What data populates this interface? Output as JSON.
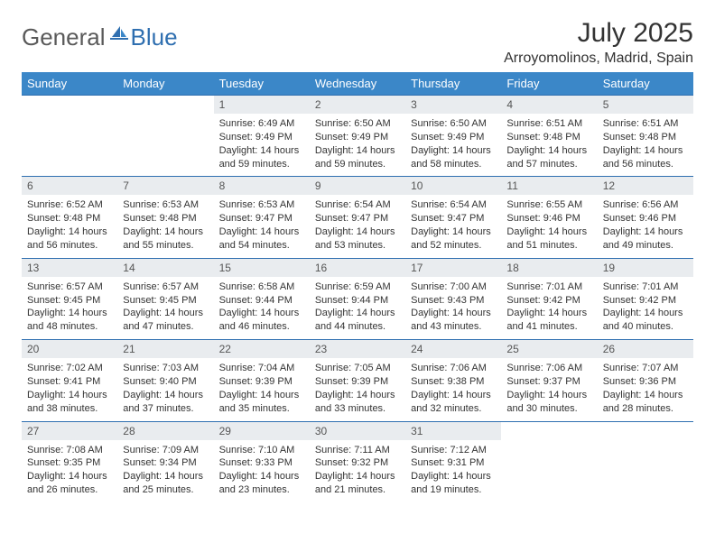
{
  "brand": {
    "text1": "General",
    "text2": "Blue",
    "icon_color": "#2f6fb0"
  },
  "title": "July 2025",
  "location": "Arroyomolinos, Madrid, Spain",
  "theme": {
    "header_bg": "#3b87c8",
    "header_text": "#ffffff",
    "daynum_bg": "#e9ecef",
    "rule_color": "#2f6fb0",
    "body_text": "#333333"
  },
  "weekdays": [
    "Sunday",
    "Monday",
    "Tuesday",
    "Wednesday",
    "Thursday",
    "Friday",
    "Saturday"
  ],
  "weeks": [
    [
      null,
      null,
      {
        "n": "1",
        "sr": "6:49 AM",
        "ss": "9:49 PM",
        "dl": "14 hours and 59 minutes."
      },
      {
        "n": "2",
        "sr": "6:50 AM",
        "ss": "9:49 PM",
        "dl": "14 hours and 59 minutes."
      },
      {
        "n": "3",
        "sr": "6:50 AM",
        "ss": "9:49 PM",
        "dl": "14 hours and 58 minutes."
      },
      {
        "n": "4",
        "sr": "6:51 AM",
        "ss": "9:48 PM",
        "dl": "14 hours and 57 minutes."
      },
      {
        "n": "5",
        "sr": "6:51 AM",
        "ss": "9:48 PM",
        "dl": "14 hours and 56 minutes."
      }
    ],
    [
      {
        "n": "6",
        "sr": "6:52 AM",
        "ss": "9:48 PM",
        "dl": "14 hours and 56 minutes."
      },
      {
        "n": "7",
        "sr": "6:53 AM",
        "ss": "9:48 PM",
        "dl": "14 hours and 55 minutes."
      },
      {
        "n": "8",
        "sr": "6:53 AM",
        "ss": "9:47 PM",
        "dl": "14 hours and 54 minutes."
      },
      {
        "n": "9",
        "sr": "6:54 AM",
        "ss": "9:47 PM",
        "dl": "14 hours and 53 minutes."
      },
      {
        "n": "10",
        "sr": "6:54 AM",
        "ss": "9:47 PM",
        "dl": "14 hours and 52 minutes."
      },
      {
        "n": "11",
        "sr": "6:55 AM",
        "ss": "9:46 PM",
        "dl": "14 hours and 51 minutes."
      },
      {
        "n": "12",
        "sr": "6:56 AM",
        "ss": "9:46 PM",
        "dl": "14 hours and 49 minutes."
      }
    ],
    [
      {
        "n": "13",
        "sr": "6:57 AM",
        "ss": "9:45 PM",
        "dl": "14 hours and 48 minutes."
      },
      {
        "n": "14",
        "sr": "6:57 AM",
        "ss": "9:45 PM",
        "dl": "14 hours and 47 minutes."
      },
      {
        "n": "15",
        "sr": "6:58 AM",
        "ss": "9:44 PM",
        "dl": "14 hours and 46 minutes."
      },
      {
        "n": "16",
        "sr": "6:59 AM",
        "ss": "9:44 PM",
        "dl": "14 hours and 44 minutes."
      },
      {
        "n": "17",
        "sr": "7:00 AM",
        "ss": "9:43 PM",
        "dl": "14 hours and 43 minutes."
      },
      {
        "n": "18",
        "sr": "7:01 AM",
        "ss": "9:42 PM",
        "dl": "14 hours and 41 minutes."
      },
      {
        "n": "19",
        "sr": "7:01 AM",
        "ss": "9:42 PM",
        "dl": "14 hours and 40 minutes."
      }
    ],
    [
      {
        "n": "20",
        "sr": "7:02 AM",
        "ss": "9:41 PM",
        "dl": "14 hours and 38 minutes."
      },
      {
        "n": "21",
        "sr": "7:03 AM",
        "ss": "9:40 PM",
        "dl": "14 hours and 37 minutes."
      },
      {
        "n": "22",
        "sr": "7:04 AM",
        "ss": "9:39 PM",
        "dl": "14 hours and 35 minutes."
      },
      {
        "n": "23",
        "sr": "7:05 AM",
        "ss": "9:39 PM",
        "dl": "14 hours and 33 minutes."
      },
      {
        "n": "24",
        "sr": "7:06 AM",
        "ss": "9:38 PM",
        "dl": "14 hours and 32 minutes."
      },
      {
        "n": "25",
        "sr": "7:06 AM",
        "ss": "9:37 PM",
        "dl": "14 hours and 30 minutes."
      },
      {
        "n": "26",
        "sr": "7:07 AM",
        "ss": "9:36 PM",
        "dl": "14 hours and 28 minutes."
      }
    ],
    [
      {
        "n": "27",
        "sr": "7:08 AM",
        "ss": "9:35 PM",
        "dl": "14 hours and 26 minutes."
      },
      {
        "n": "28",
        "sr": "7:09 AM",
        "ss": "9:34 PM",
        "dl": "14 hours and 25 minutes."
      },
      {
        "n": "29",
        "sr": "7:10 AM",
        "ss": "9:33 PM",
        "dl": "14 hours and 23 minutes."
      },
      {
        "n": "30",
        "sr": "7:11 AM",
        "ss": "9:32 PM",
        "dl": "14 hours and 21 minutes."
      },
      {
        "n": "31",
        "sr": "7:12 AM",
        "ss": "9:31 PM",
        "dl": "14 hours and 19 minutes."
      },
      null,
      null
    ]
  ],
  "labels": {
    "sunrise": "Sunrise: ",
    "sunset": "Sunset: ",
    "daylight": "Daylight: "
  }
}
